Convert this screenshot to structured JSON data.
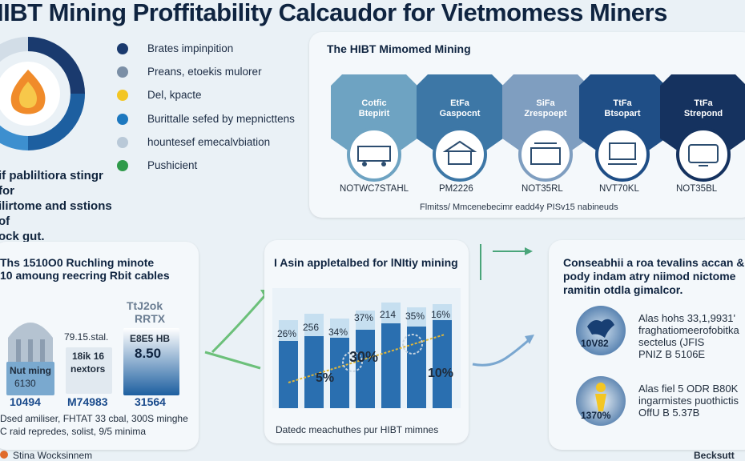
{
  "header": {
    "title": "IIBT Mining Proffitability Calcaudor for Vietmomess Miners"
  },
  "legend": {
    "items": [
      {
        "label": "Brates impinpition",
        "color": "#1a3a6e"
      },
      {
        "label": "Preans, etoekis mulorer",
        "color": "#7b8fa6"
      },
      {
        "label": "Del, kpacte",
        "color": "#f3c623"
      },
      {
        "label": "Burittalle sefed by mepnicttens",
        "color": "#1d78bf"
      },
      {
        "label": "hountesef emecalvbiation",
        "color": "#b9c9d8"
      },
      {
        "label": "Pushicient",
        "color": "#2f9a4a"
      }
    ]
  },
  "left_caption": {
    "lines": [
      "if pabliltiora stingr for",
      "ilirtome and sstions of",
      "ock gut."
    ]
  },
  "top_panel": {
    "title": "The HIBT Mimomed Mining",
    "cards": [
      {
        "label1": "Cotfic",
        "label2": "Btepirit",
        "code": "NOTWC7STAHL",
        "color": "#6ea3c2",
        "icon": "truck-icon"
      },
      {
        "label1": "EtFa",
        "label2": "Gaspocnt",
        "code": "PM2226",
        "color": "#3d77a6",
        "icon": "building-icon"
      },
      {
        "label1": "SiFa",
        "label2": "Zrespoept",
        "code": "NOT35RL",
        "color": "#7f9ec0",
        "icon": "factory-icon"
      },
      {
        "label1": "TtFa",
        "label2": "Btsopart",
        "code": "NVT70KL",
        "color": "#1f4e86",
        "icon": "rig-icon"
      },
      {
        "label1": "TtFa",
        "label2": "Strepond",
        "code": "NOT35BL",
        "color": "#15325f",
        "icon": "monitor-icon"
      }
    ],
    "note": "Flmitss/ Mmcenebecimr eadd4y PISv15 nabineuds"
  },
  "bottom_left": {
    "title_lines": [
      "Ths 1510O0 Ruchling minote",
      "10 amoung reecring Rbit cables"
    ],
    "top_label_1": "TtJ2ok",
    "top_label_2": "RRTX",
    "item1": {
      "label1": "Nut ming",
      "label2": "6130",
      "value": "10494"
    },
    "item2": {
      "label0": "79.15.stal.",
      "label1": "18ik 16",
      "label2": "nextors",
      "value": "M74983"
    },
    "item3": {
      "label1": "E8E5 HB",
      "label2": "8.50",
      "value": "31564"
    },
    "footer_lines": [
      "Dsed amiliser, FHTAT 33 cbal, 300S minghe",
      "C raid repredes, solist, 9/5 minima"
    ]
  },
  "bottom_middle": {
    "title": "I Asin appletalbed for lNItiy mining",
    "bar_labels": [
      "26%",
      "256",
      "34%",
      "37%",
      "214",
      "35%",
      "16%"
    ],
    "callout_1": "30%",
    "callout_2": "5%",
    "callout_3": "10%",
    "footer": "Datedc meachuthes pur HIBT mimnes"
  },
  "bottom_right": {
    "title_lines": [
      "Conseabhii a roa tevalins accan &",
      "pody indam atry niimod nictome",
      "ramitin otdla gimalcor."
    ],
    "stat1": {
      "badge": "10V82",
      "lines": [
        "Alas hohs 33,1,9931'",
        "fraghatiomeerofobitka",
        "sectelus (JFIS",
        "PNIZ B 5106E"
      ]
    },
    "stat2": {
      "badge": "1370%",
      "lines": [
        "Alas fiel 5 ODR B80K",
        "ingarmistes puothictis",
        "OffU B 5.37B"
      ]
    }
  },
  "footer": {
    "left": "Stina Wocksinnem",
    "right": "Becksutt"
  }
}
